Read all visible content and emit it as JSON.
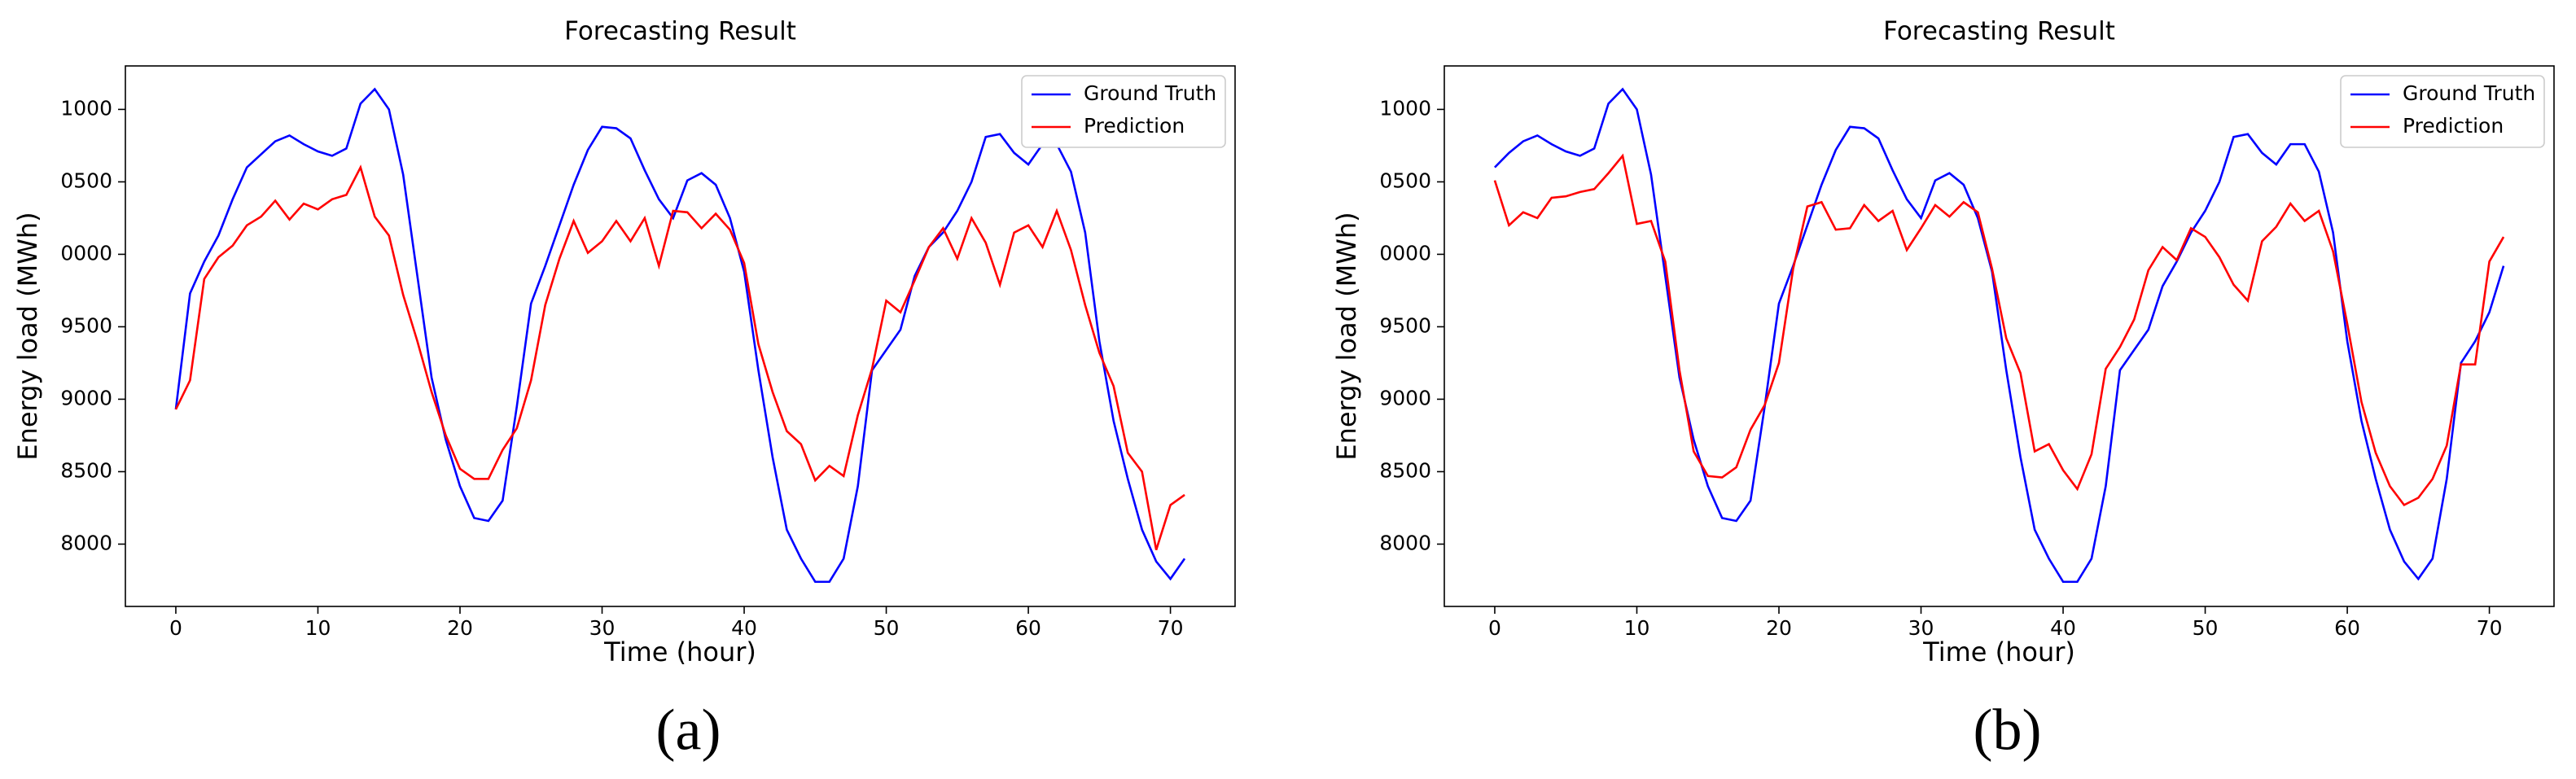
{
  "chart_data": [
    {
      "type": "line",
      "title": "Forecasting Result",
      "x_label": "Time (hour)",
      "y_label": "Energy load (MWh)",
      "caption": "(a)",
      "x": [
        0,
        1,
        2,
        3,
        4,
        5,
        6,
        7,
        8,
        9,
        10,
        11,
        12,
        13,
        14,
        15,
        16,
        17,
        18,
        19,
        20,
        21,
        22,
        23,
        24,
        25,
        26,
        27,
        28,
        29,
        30,
        31,
        32,
        33,
        34,
        35,
        36,
        37,
        38,
        39,
        40,
        41,
        42,
        43,
        44,
        45,
        46,
        47,
        48,
        49,
        50,
        51,
        52,
        53,
        54,
        55,
        56,
        57,
        58,
        59,
        60,
        61,
        62,
        63,
        64,
        65,
        66,
        67,
        68,
        69,
        70,
        71
      ],
      "series": [
        {
          "name": "Ground Truth",
          "color": "#0000ff",
          "values": [
            8930,
            9730,
            9950,
            10130,
            10380,
            10600,
            10690,
            10780,
            10820,
            10760,
            10710,
            10680,
            10730,
            11040,
            11140,
            11000,
            10550,
            9850,
            9150,
            8720,
            8400,
            8180,
            8160,
            8300,
            8950,
            9660,
            9920,
            10200,
            10480,
            10720,
            10880,
            10870,
            10800,
            10580,
            10380,
            10250,
            10510,
            10560,
            10480,
            10250,
            9880,
            9200,
            8600,
            8100,
            7900,
            7740,
            7740,
            7900,
            8400,
            9200,
            9340,
            9480,
            9850,
            10050,
            10150,
            10300,
            10500,
            10810,
            10830,
            10700,
            10620,
            10760,
            10760,
            10570,
            10150,
            9400,
            8850,
            8450,
            8100,
            7880,
            7760,
            7900
          ]
        },
        {
          "name": "Prediction",
          "color": "#ff0000",
          "values": [
            8930,
            9130,
            9830,
            9980,
            10060,
            10200,
            10260,
            10370,
            10240,
            10350,
            10310,
            10380,
            10410,
            10600,
            10260,
            10130,
            9720,
            9400,
            9050,
            8750,
            8520,
            8450,
            8450,
            8650,
            8800,
            9130,
            9650,
            9970,
            10230,
            10010,
            10090,
            10230,
            10090,
            10250,
            9920,
            10300,
            10290,
            10180,
            10280,
            10170,
            9940,
            9380,
            9050,
            8780,
            8690,
            8440,
            8540,
            8470,
            8890,
            9210,
            9680,
            9600,
            9820,
            10050,
            10180,
            9970,
            10250,
            10080,
            9790,
            10150,
            10200,
            10050,
            10300,
            10030,
            9650,
            9320,
            9090,
            8630,
            8500,
            7960,
            8270,
            8340
          ]
        }
      ],
      "xlim": [
        -3.55,
        74.55
      ],
      "xticks": [
        0,
        10,
        20,
        30,
        40,
        50,
        60,
        70
      ],
      "ylim": [
        7570,
        11300
      ],
      "yticks": [
        8000,
        8500,
        9000,
        9500,
        {
          "value": 10000,
          "label": "0000"
        },
        {
          "value": 10500,
          "label": "0500"
        },
        {
          "value": 11000,
          "label": "1000"
        }
      ],
      "legend": "upper right"
    },
    {
      "type": "line",
      "title": "Forecasting Result",
      "x_label": "Time (hour)",
      "y_label": "Energy load (MWh)",
      "caption": "(b)",
      "x": [
        0,
        1,
        2,
        3,
        4,
        5,
        6,
        7,
        8,
        9,
        10,
        11,
        12,
        13,
        14,
        15,
        16,
        17,
        18,
        19,
        20,
        21,
        22,
        23,
        24,
        25,
        26,
        27,
        28,
        29,
        30,
        31,
        32,
        33,
        34,
        35,
        36,
        37,
        38,
        39,
        40,
        41,
        42,
        43,
        44,
        45,
        46,
        47,
        48,
        49,
        50,
        51,
        52,
        53,
        54,
        55,
        56,
        57,
        58,
        59,
        60,
        61,
        62,
        63,
        64,
        65,
        66,
        67,
        68,
        69,
        70,
        71
      ],
      "series": [
        {
          "name": "Ground Truth",
          "color": "#0000ff",
          "values": [
            10600,
            10700,
            10780,
            10820,
            10760,
            10710,
            10680,
            10730,
            11040,
            11140,
            11000,
            10550,
            9850,
            9150,
            8720,
            8400,
            8180,
            8160,
            8300,
            8950,
            9660,
            9920,
            10200,
            10480,
            10720,
            10880,
            10870,
            10800,
            10580,
            10380,
            10250,
            10510,
            10560,
            10480,
            10250,
            9880,
            9200,
            8600,
            8100,
            7900,
            7740,
            7740,
            7900,
            8400,
            9200,
            9340,
            9480,
            9780,
            9950,
            10150,
            10300,
            10500,
            10810,
            10830,
            10700,
            10620,
            10760,
            10760,
            10570,
            10150,
            9400,
            8850,
            8450,
            8100,
            7880,
            7760,
            7900,
            8450,
            9250,
            9400,
            9600,
            9920
          ]
        },
        {
          "name": "Prediction",
          "color": "#ff0000",
          "values": [
            10510,
            10200,
            10290,
            10250,
            10390,
            10400,
            10430,
            10450,
            10560,
            10680,
            10210,
            10230,
            9950,
            9200,
            8640,
            8470,
            8460,
            8530,
            8790,
            8960,
            9250,
            9900,
            10330,
            10360,
            10170,
            10180,
            10340,
            10230,
            10300,
            10030,
            10180,
            10340,
            10260,
            10360,
            10290,
            9900,
            9420,
            9180,
            8640,
            8690,
            8510,
            8380,
            8620,
            9210,
            9360,
            9550,
            9890,
            10050,
            9960,
            10180,
            10120,
            9980,
            9790,
            9680,
            10090,
            10190,
            10350,
            10230,
            10300,
            10020,
            9520,
            8980,
            8630,
            8400,
            8270,
            8320,
            8450,
            8680,
            9240,
            9240,
            9950,
            10120
          ]
        }
      ],
      "xlim": [
        -3.55,
        74.55
      ],
      "xticks": [
        0,
        10,
        20,
        30,
        40,
        50,
        60,
        70
      ],
      "ylim": [
        7570,
        11300
      ],
      "yticks": [
        8000,
        8500,
        9000,
        9500,
        {
          "value": 10000,
          "label": "0000"
        },
        {
          "value": 10500,
          "label": "0500"
        },
        {
          "value": 11000,
          "label": "1000"
        }
      ],
      "legend": "upper right"
    }
  ]
}
